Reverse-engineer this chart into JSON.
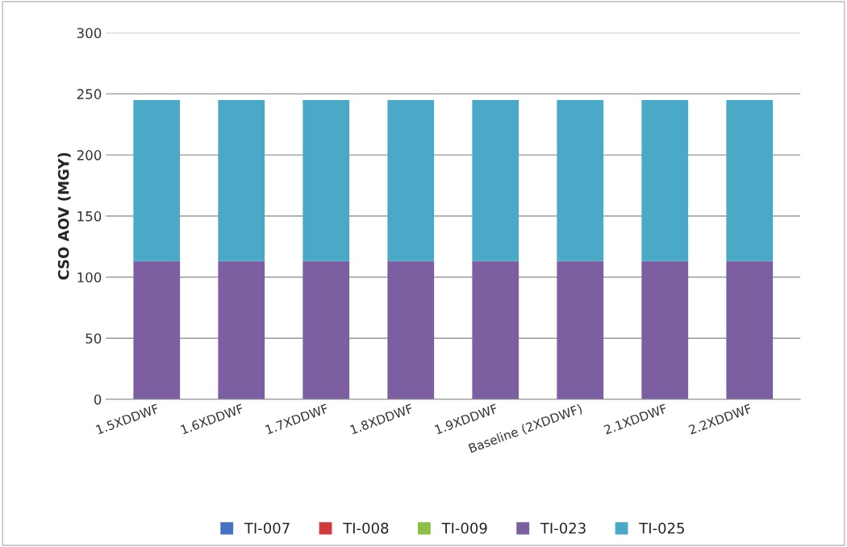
{
  "chart_data": {
    "type": "bar",
    "stacked": true,
    "ylabel": "CSO AOV (MGY)",
    "categories": [
      "1.5XDDWF",
      "1.6XDDWF",
      "1.7XDDWF",
      "1.8XDDWF",
      "1.9XDDWF",
      "Baseline (2XDDWF)",
      "2.1XDDWF",
      "2.2XDDWF"
    ],
    "series": [
      {
        "name": "TI-007",
        "color": "#4472c4",
        "values": [
          0,
          0,
          0,
          0,
          0,
          0,
          0,
          0
        ]
      },
      {
        "name": "TI-008",
        "color": "#d13b3b",
        "values": [
          0,
          0,
          0,
          0,
          0,
          0,
          0,
          0
        ]
      },
      {
        "name": "TI-009",
        "color": "#8cbf45",
        "values": [
          0,
          0,
          0,
          0,
          0,
          0,
          0,
          0
        ]
      },
      {
        "name": "TI-023",
        "color": "#7b5fa0",
        "values": [
          113,
          113,
          113,
          113,
          113,
          113,
          113,
          113
        ]
      },
      {
        "name": "TI-025",
        "color": "#4aa9c6",
        "values": [
          132,
          132,
          132,
          132,
          132,
          132,
          132,
          132
        ]
      }
    ],
    "ylim": [
      0,
      300
    ],
    "yticks": [
      0,
      50,
      100,
      150,
      200,
      250,
      300
    ],
    "grid": "y",
    "legend": "bottom"
  }
}
